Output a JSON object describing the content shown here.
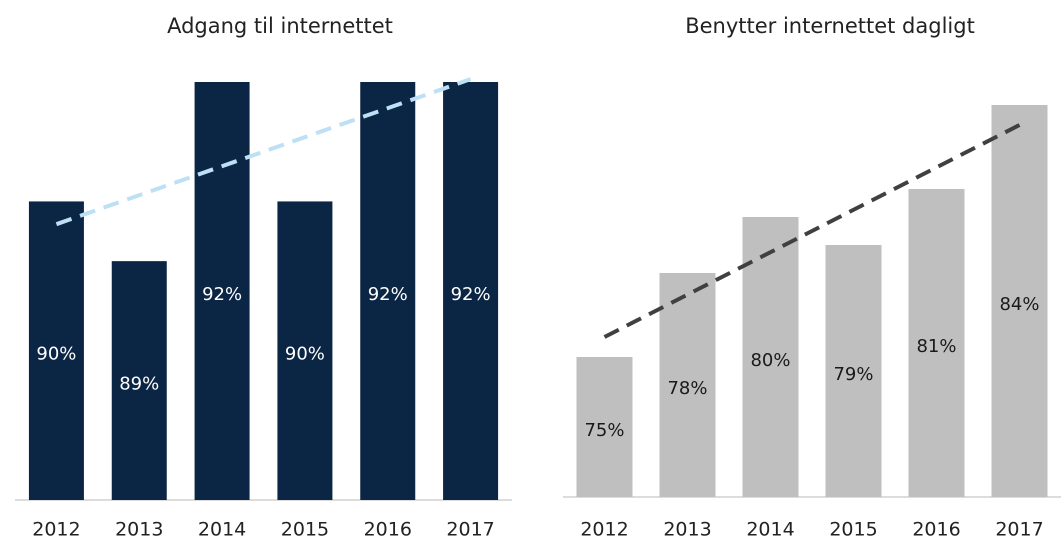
{
  "chart_data": [
    {
      "type": "bar",
      "title": "Adgang til internettet",
      "categories": [
        "2012",
        "2013",
        "2014",
        "2015",
        "2016",
        "2017"
      ],
      "values": [
        90,
        89,
        92,
        90,
        92,
        92
      ],
      "value_labels": [
        "90%",
        "89%",
        "92%",
        "90%",
        "92%",
        "92%"
      ],
      "color": "#0b2545",
      "label_color": "#ffffff",
      "ylim": [
        85,
        92
      ],
      "trendline": true,
      "trendline_color": "#bde0f5"
    },
    {
      "type": "bar",
      "title": "Benytter internettet dagligt",
      "categories": [
        "2012",
        "2013",
        "2014",
        "2015",
        "2016",
        "2017"
      ],
      "values": [
        75,
        78,
        80,
        79,
        81,
        84
      ],
      "value_labels": [
        "75%",
        "78%",
        "80%",
        "79%",
        "81%",
        "84%"
      ],
      "color": "#bfbfbf",
      "label_color": "#1a1a1a",
      "ylim": [
        70,
        84
      ],
      "trendline": true,
      "trendline_color": "#404040"
    }
  ]
}
